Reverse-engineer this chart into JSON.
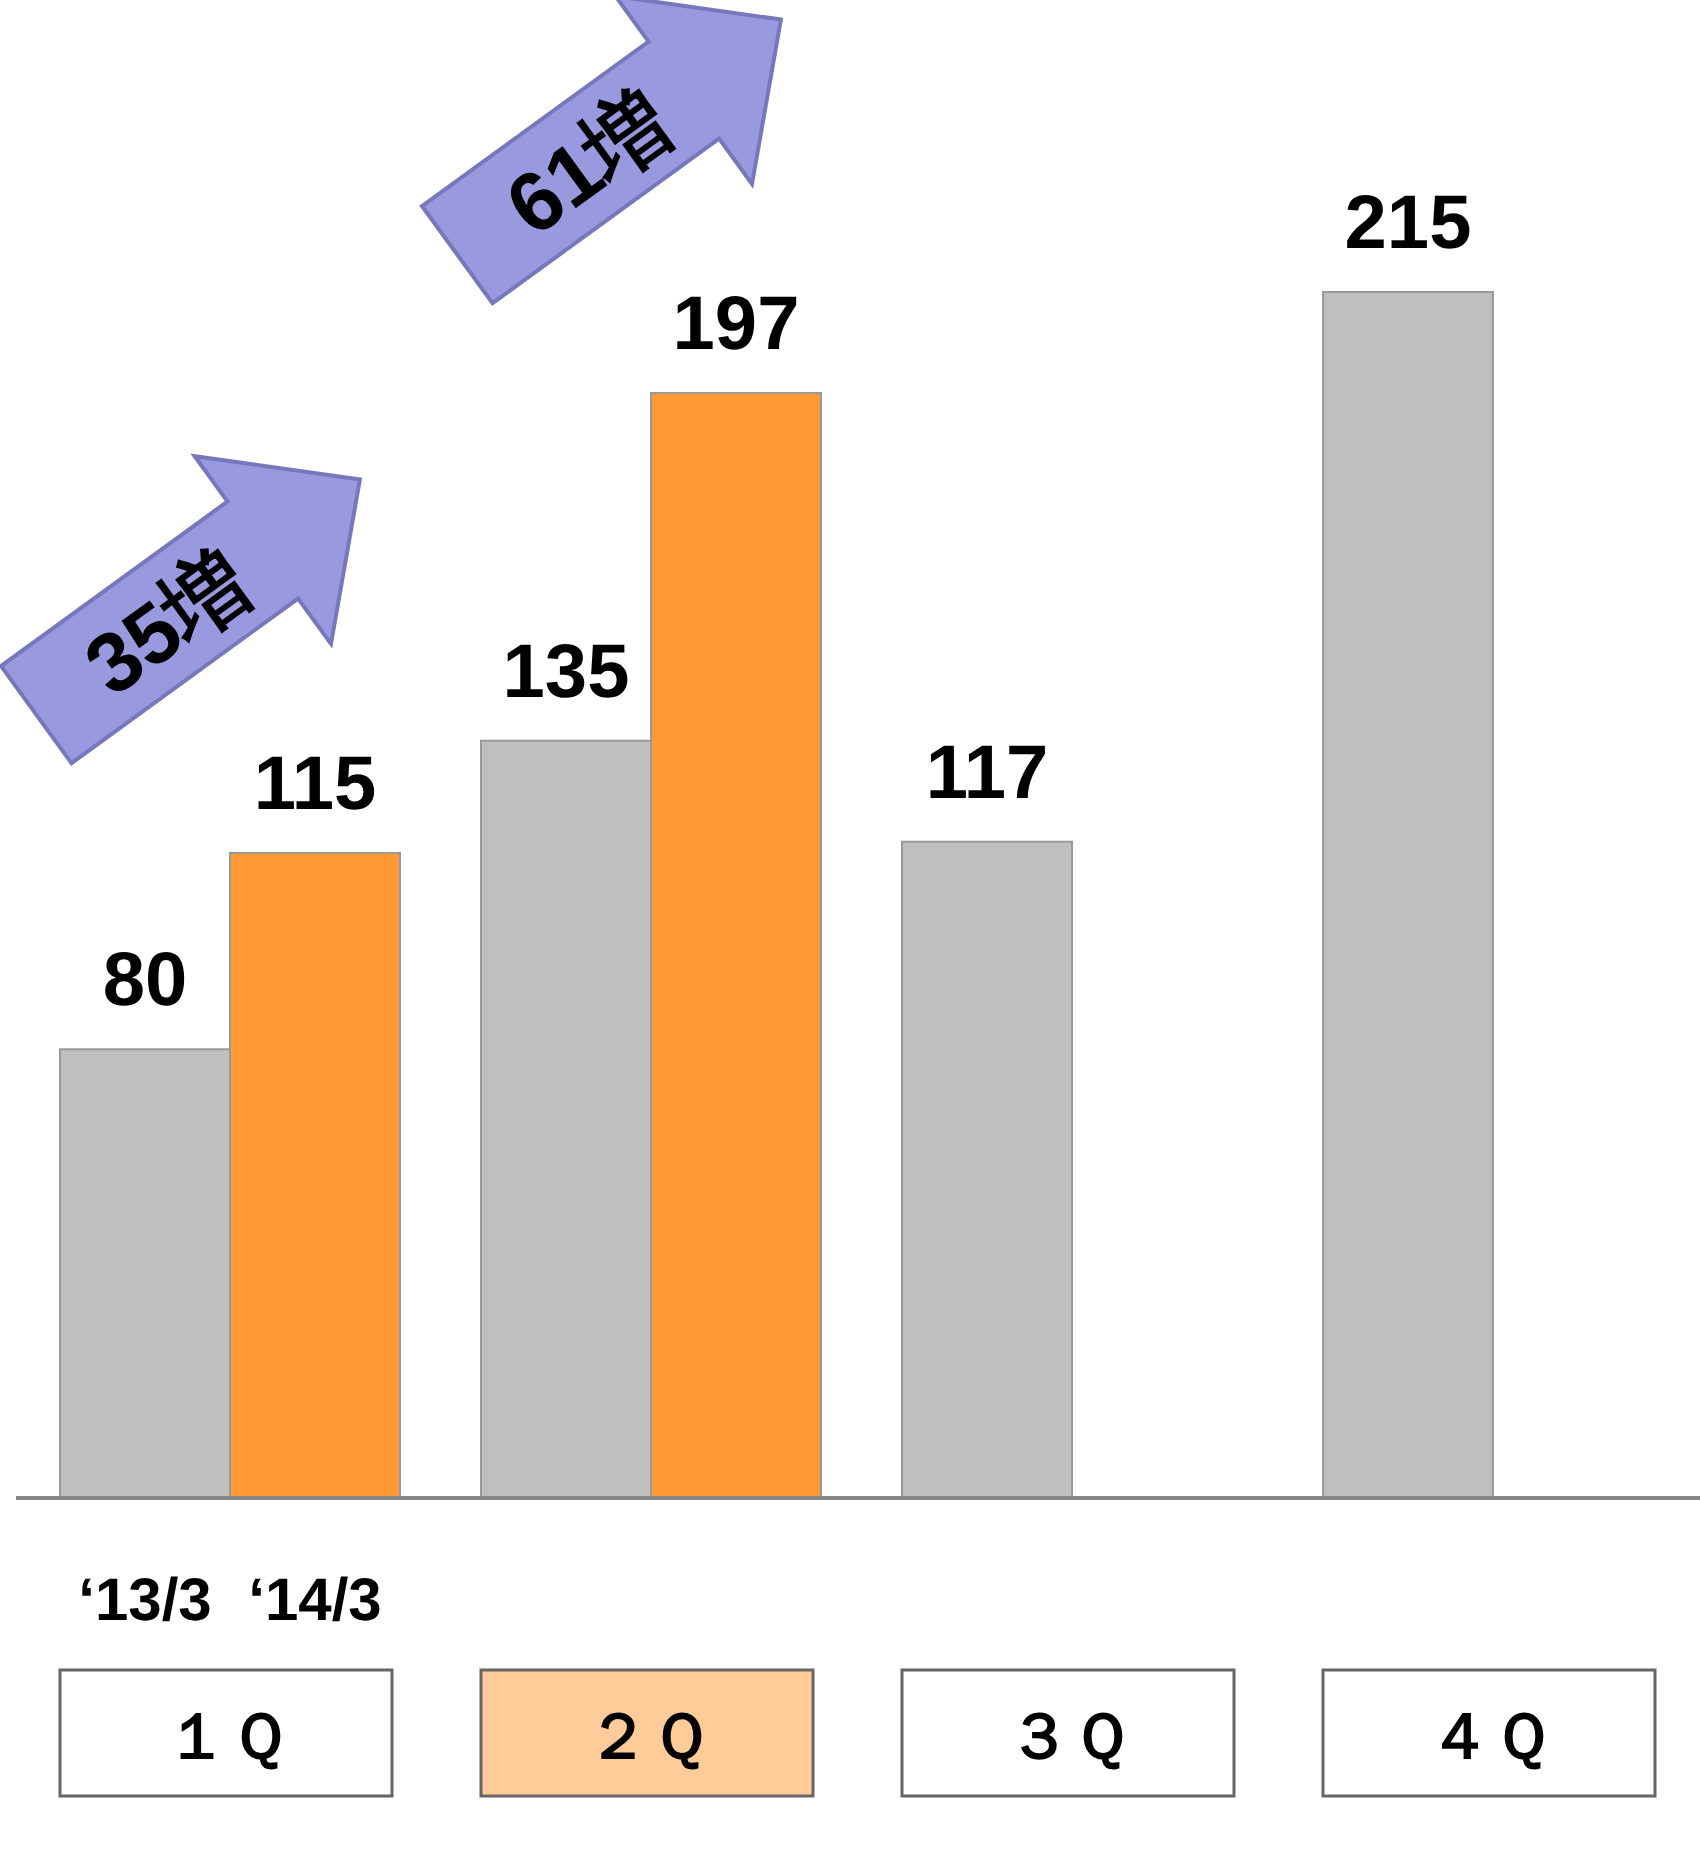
{
  "chart_data": {
    "type": "bar",
    "categories": [
      "１Ｑ",
      "２Ｑ",
      "３Ｑ",
      "４Ｑ"
    ],
    "series": [
      {
        "name": "‘13/3",
        "color": "#bfbfbf",
        "values": [
          80,
          135,
          117,
          215
        ]
      },
      {
        "name": "‘14/3",
        "color": "#ff9933",
        "values": [
          115,
          197,
          null,
          null
        ]
      }
    ],
    "data_labels": true,
    "annotations": [
      "35増",
      "61増"
    ]
  }
}
